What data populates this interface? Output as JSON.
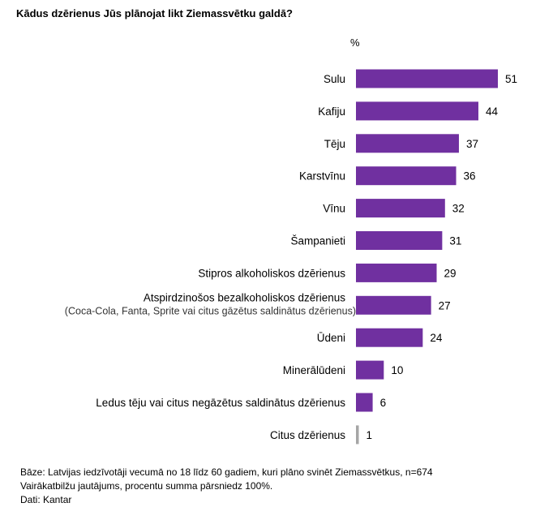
{
  "chart_data": {
    "type": "bar",
    "orientation": "horizontal",
    "title": "Kādus dzērienus Jūs plānojat likt Ziemassvētku galdā?",
    "unit": "%",
    "categories": [
      "Sulu",
      "Kafiju",
      "Tēju",
      "Karstvīnu",
      "Vīnu",
      "Šampanieti",
      "Stipros alkoholiskos dzērienus",
      "Atspirdzinošos bezalkoholiskos dzērienus",
      "Ūdeni",
      "Minerālūdeni",
      "Ledus tēju vai citus negāzētus saldinātus dzērienus",
      "Citus dzērienus"
    ],
    "category_notes": [
      "",
      "",
      "",
      "",
      "",
      "",
      "",
      "(Coca-Cola, Fanta, Sprite vai citus gāzētus saldinātus dzērienus)",
      "",
      "",
      "",
      ""
    ],
    "values": [
      51,
      44,
      37,
      36,
      32,
      31,
      29,
      27,
      24,
      10,
      6,
      1
    ],
    "colors": {
      "bar": "#7030a0",
      "other_bar": "#a6a6a6"
    },
    "xlim": [
      0,
      51
    ],
    "grid": false,
    "legend": "none"
  },
  "footer": {
    "base": "Bāze: Latvijas iedzīvotāji vecumā no 18 līdz 60 gadiem, kuri plāno svinēt Ziemassvētkus, n=674",
    "note": "Vairākatbilžu jautājums, procentu summa pārsniedz 100%.",
    "source": "Dati: Kantar"
  }
}
